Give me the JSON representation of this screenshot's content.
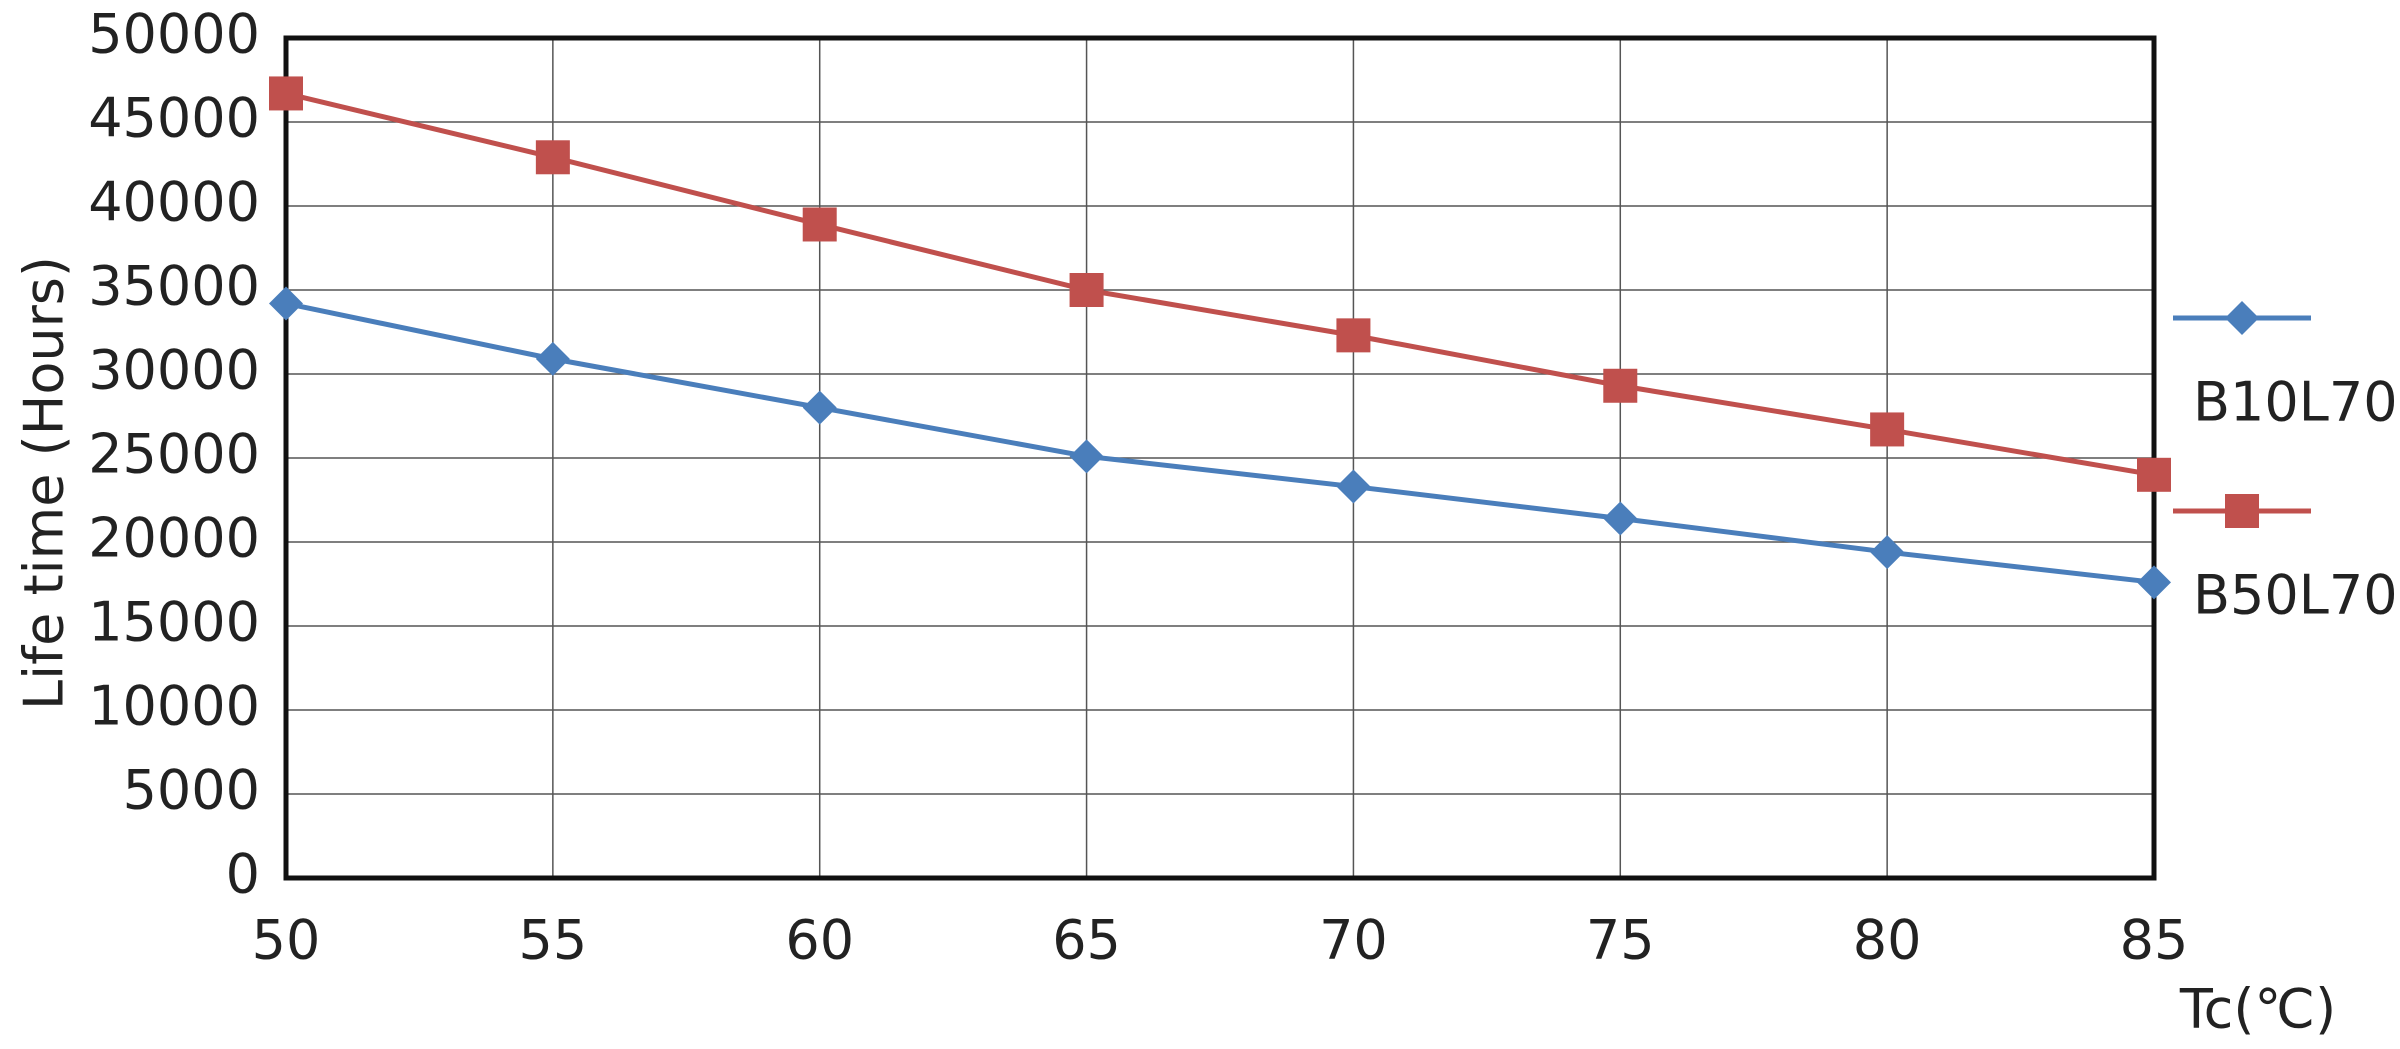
{
  "chart_data": {
    "type": "line",
    "x": [
      50,
      55,
      60,
      65,
      70,
      75,
      80,
      85
    ],
    "series": [
      {
        "name": "B10L70",
        "color": "#4a7ebb",
        "marker": "diamond",
        "values": [
          34200,
          30900,
          28000,
          25100,
          23300,
          21400,
          19400,
          17600
        ]
      },
      {
        "name": "B50L70",
        "color": "#c0504d",
        "marker": "square",
        "values": [
          46700,
          42900,
          38900,
          35000,
          32300,
          29300,
          26700,
          24000
        ]
      }
    ],
    "xlabel": "Tc(℃)",
    "ylabel": "Life time (Hours)",
    "xlim": [
      50,
      85
    ],
    "xticks": [
      50,
      55,
      60,
      65,
      70,
      75,
      80,
      85
    ],
    "ylim": [
      0,
      50000
    ],
    "yticks": [
      0,
      5000,
      10000,
      15000,
      20000,
      25000,
      30000,
      35000,
      40000,
      45000,
      50000
    ],
    "grid": true,
    "legend": "right"
  }
}
